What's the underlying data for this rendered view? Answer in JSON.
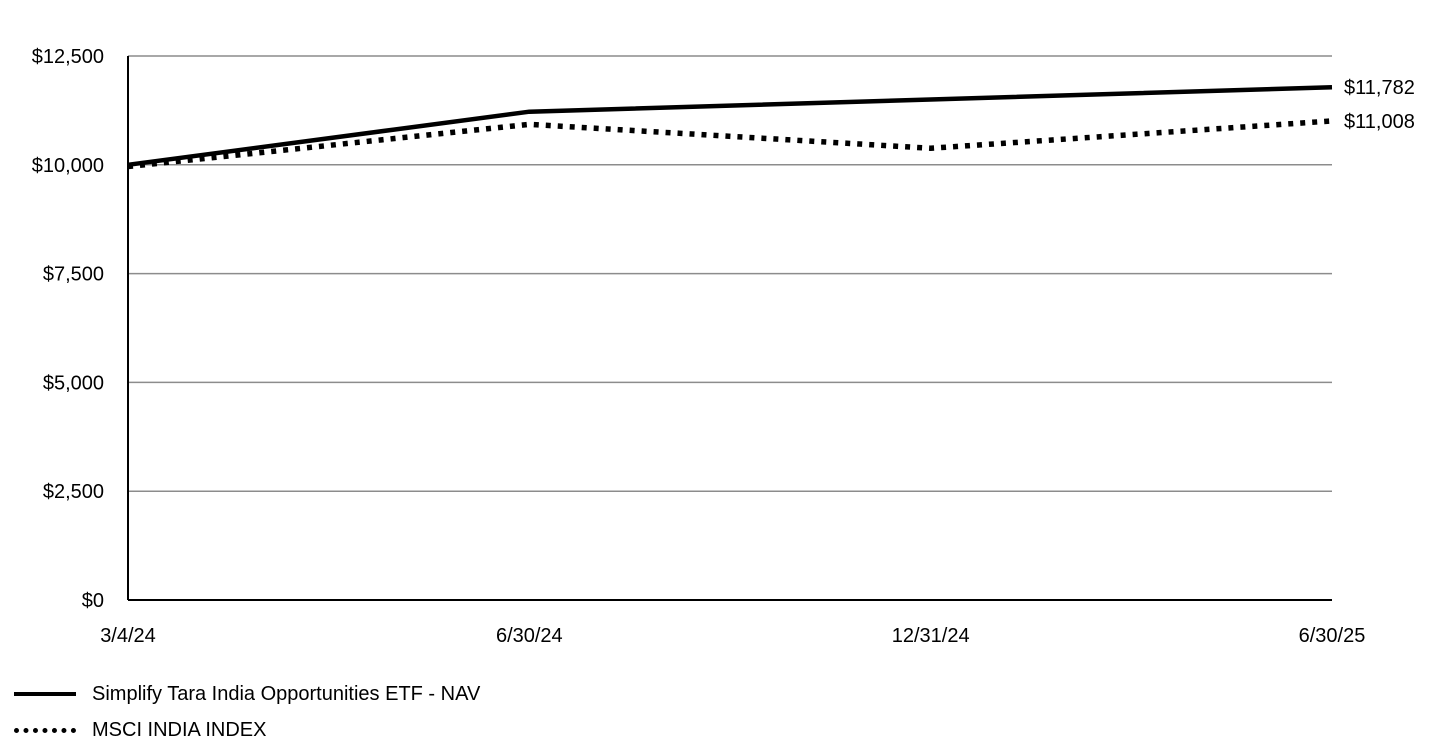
{
  "chart_data": {
    "type": "line",
    "x": [
      "3/4/24",
      "6/30/24",
      "12/31/24",
      "6/30/25"
    ],
    "ylim": [
      0,
      12500
    ],
    "y_ticks": [
      "$0",
      "$2,500",
      "$5,000",
      "$7,500",
      "$10,000",
      "$12,500"
    ],
    "y_tick_values": [
      0,
      2500,
      5000,
      7500,
      10000,
      12500
    ],
    "grid": true,
    "legend_position": "bottom-left",
    "series": [
      {
        "name": "Simplify Tara India Opportunities ETF - NAV",
        "style": "solid",
        "color": "#000000",
        "values": [
          10000,
          11220,
          11500,
          11782
        ],
        "end_label": "$11,782"
      },
      {
        "name": "MSCI INDIA INDEX",
        "style": "dotted",
        "color": "#000000",
        "values": [
          9960,
          10930,
          10380,
          11008
        ],
        "end_label": "$11,008"
      }
    ]
  }
}
